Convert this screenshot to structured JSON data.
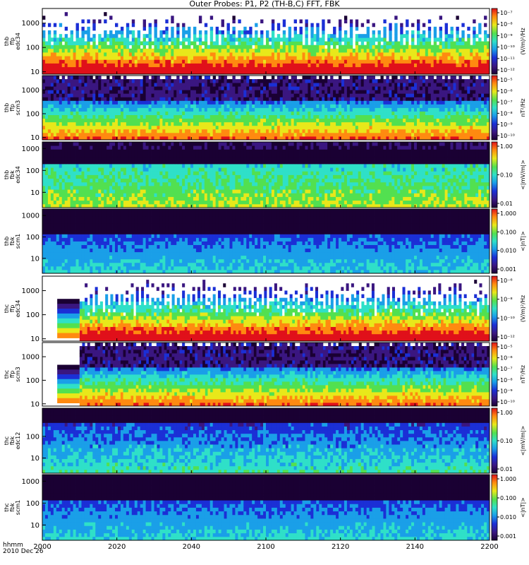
{
  "title": "Outer Probes: P1, P2 (TH-B,C) FFT, FBK",
  "footer": {
    "line1": "hhmm",
    "line2": "2010 Dec 26"
  },
  "chart_data": {
    "type": "heatmap",
    "title": "Outer Probes: P1, P2 (TH-B,C) FFT, FBK",
    "x_ticks": [
      "2000",
      "2020",
      "2040",
      "2100",
      "2120",
      "2140",
      "2200"
    ],
    "x_range": [
      "2000",
      "2200"
    ],
    "panels": [
      {
        "id": "thb-ffp-edc34",
        "ylabel": [
          "thb",
          "ffp",
          "edc34"
        ],
        "yscale": "log",
        "yticks": [
          "1000",
          "100",
          "10"
        ],
        "yrange": [
          8,
          4000
        ],
        "cb_label": "(V/m)²/Hz",
        "cb_ticks": [
          "10⁻⁷",
          "10⁻⁸",
          "10⁻⁹",
          "10⁻¹⁰",
          "10⁻¹¹",
          "10⁻¹²"
        ],
        "kind": "ffp"
      },
      {
        "id": "thb-ffp-scm3",
        "ylabel": [
          "thb",
          "ffp",
          "scm3"
        ],
        "yscale": "log",
        "yticks": [
          "1000",
          "100",
          "10"
        ],
        "yrange": [
          8,
          4000
        ],
        "cb_label": "nT²/Hz",
        "cb_ticks": [
          "10⁻⁵",
          "10⁻⁶",
          "10⁻⁷",
          "10⁻⁸",
          "10⁻⁹",
          "10⁻¹⁰"
        ],
        "kind": "scm"
      },
      {
        "id": "thb-fbk-edc34",
        "ylabel": [
          "thb",
          "fbk",
          "edc34"
        ],
        "yscale": "log",
        "yticks": [
          "1000",
          "100",
          "10"
        ],
        "yrange": [
          2,
          2000
        ],
        "cb_label": "<|mV/m|>",
        "cb_ticks": [
          "1.00",
          "0.10",
          "0.01"
        ],
        "kind": "fbke"
      },
      {
        "id": "thb-fbk-scm1",
        "ylabel": [
          "thb",
          "fbk",
          "scm1"
        ],
        "yscale": "log",
        "yticks": [
          "1000",
          "100",
          "10"
        ],
        "yrange": [
          2,
          2000
        ],
        "cb_label": "<|nT|>",
        "cb_ticks": [
          "1.000",
          "0.100",
          "0.010",
          "0.001"
        ],
        "kind": "fbkb"
      },
      {
        "id": "thc-ffp-edc34",
        "ylabel": [
          "thc",
          "ffp",
          "edc34"
        ],
        "yscale": "log",
        "yticks": [
          "1000",
          "100",
          "10"
        ],
        "yrange": [
          8,
          4000
        ],
        "cb_label": "(V/m)²/Hz",
        "cb_ticks": [
          "10⁻⁶",
          "10⁻⁸",
          "10⁻¹⁰",
          "10⁻¹²"
        ],
        "kind": "ffp",
        "gap_until": "2010"
      },
      {
        "id": "thc-ffp-scm3",
        "ylabel": [
          "thc",
          "ffp",
          "scm3"
        ],
        "yscale": "log",
        "yticks": [
          "1000",
          "100",
          "10"
        ],
        "yrange": [
          8,
          4000
        ],
        "cb_label": "nT²/Hz",
        "cb_ticks": [
          "10⁻⁵",
          "10⁻⁶",
          "10⁻⁷",
          "10⁻⁸",
          "10⁻⁹",
          "10⁻¹⁰"
        ],
        "kind": "scm",
        "gap_until": "2010"
      },
      {
        "id": "thc-fbk-edc12",
        "ylabel": [
          "thc",
          "fbk",
          "edc12"
        ],
        "yscale": "log",
        "yticks": [
          "100",
          "10"
        ],
        "yrange": [
          2,
          2000
        ],
        "cb_label": "<|mV/m|>",
        "cb_ticks": [
          "1.00",
          "0.10",
          "0.01"
        ],
        "kind": "fbke2"
      },
      {
        "id": "thc-fbk-scm1",
        "ylabel": [
          "thc",
          "fbk",
          "scm1"
        ],
        "yscale": "log",
        "yticks": [
          "1000",
          "100",
          "10"
        ],
        "yrange": [
          2,
          2000
        ],
        "cb_label": "<|nT|>",
        "cb_ticks": [
          "1.000",
          "0.100",
          "0.010",
          "0.001"
        ],
        "kind": "fbkb"
      }
    ]
  }
}
